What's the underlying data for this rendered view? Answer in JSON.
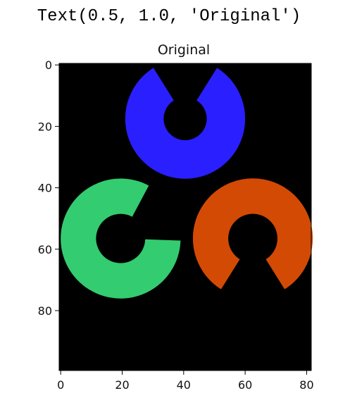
{
  "output_text": "Text(0.5, 1.0, 'Original')",
  "chart_data": {
    "type": "image",
    "title": "Original",
    "xlabel": "",
    "ylabel": "",
    "xlim": [
      -0.5,
      81.5
    ],
    "ylim": [
      99.5,
      -0.5
    ],
    "x_ticks": [
      0,
      20,
      40,
      60,
      80
    ],
    "y_ticks": [
      0,
      20,
      40,
      60,
      80
    ],
    "background_color": "#000000",
    "shapes": [
      {
        "name": "blue ring",
        "color": "#2a1fff",
        "center": [
          40.5,
          17.5
        ],
        "outer_radius": 19.5,
        "inner_radius": 7,
        "gap_direction_deg": 90,
        "gap_half_angle_deg": 32
      },
      {
        "name": "green ring",
        "color": "#33cc70",
        "center": [
          19.5,
          56.5
        ],
        "outer_radius": 19.5,
        "inner_radius": 8,
        "gap_direction_deg": 30,
        "gap_half_angle_deg": 32
      },
      {
        "name": "red ring",
        "color": "#d34a05",
        "center": [
          62.5,
          56.5
        ],
        "outer_radius": 19.5,
        "inner_radius": 8,
        "gap_direction_deg": -90,
        "gap_half_angle_deg": 32
      }
    ]
  }
}
